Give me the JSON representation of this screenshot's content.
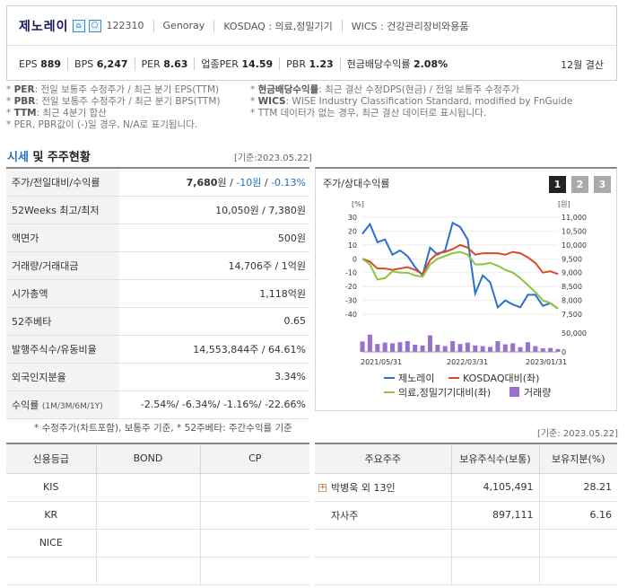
{
  "header": {
    "company_name": "제노레이",
    "badge1": "⌂",
    "badge2": "⎔",
    "code": "122310",
    "english_name": "Genoray",
    "market": "KOSDAQ : 의료,정밀기기",
    "wics": "WICS : 건강관리장비와용품",
    "metrics": [
      {
        "label": "EPS",
        "value": "889"
      },
      {
        "label": "BPS",
        "value": "6,247"
      },
      {
        "label": "PER",
        "value": "8.63"
      },
      {
        "label": "업종PER",
        "value": "14.59"
      },
      {
        "label": "PBR",
        "value": "1.23"
      },
      {
        "label": "현금배당수익률",
        "value": "2.08%"
      }
    ],
    "settlement": "12월 결산"
  },
  "notes": {
    "l1_key": "PER",
    "l1_text": ": 전일 보통주 수정주가 / 최근 분기 EPS(TTM)",
    "r1_key": "현금배당수익률",
    "r1_text": ": 최근 결산 수정DPS(현금) / 전일 보통주 수정주가",
    "l2_key": "PBR",
    "l2_text": ": 전일 보통주 수정주가 / 최근 분기 BPS(TTM)",
    "r2_key": "WICS",
    "r2_text": ": WISE Industry Classification Standard, modified by FnGuide",
    "l3_key": "TTM",
    "l3_text": ": 최근 4분기 합산",
    "r3_text": "* TTM 데이터가 없는 경우, 최근 결산 데이터로 표시됩니다.",
    "l4_text": "* PER, PBR값이 (-)일 경우, N/A로 표기됩니다."
  },
  "section": {
    "title_blue": "시세",
    "title_rest": " 및 주주현황",
    "date": "[기준:2023.05.22]"
  },
  "info_rows": {
    "price": {
      "label": "주가/전일대비/수익률",
      "price": "7,680",
      "unit": "원",
      "sep": " / ",
      "chg": "-10원",
      "sep2": " / ",
      "pct": "-0.13%"
    },
    "weeks52": {
      "label": "52Weeks 최고/최저",
      "value": "10,050원 / 7,380원"
    },
    "face": {
      "label": "액면가",
      "value": "500원"
    },
    "volume": {
      "label": "거래량/거래대금",
      "value": "14,706주 / 1억원"
    },
    "mcap": {
      "label": "시가총액",
      "value": "1,118억원"
    },
    "beta": {
      "label": "52주베타",
      "value": "0.65"
    },
    "shares": {
      "label": "발행주식수/유동비율",
      "value": "14,553,844주 / 64.61%"
    },
    "foreign": {
      "label": "외국인지분율",
      "value": "3.34%"
    },
    "returns": {
      "label": "수익률",
      "label_small": "(1M/3M/6M/1Y)",
      "value": "-2.54%/ -6.34%/ -1.16%/ -22.66%"
    }
  },
  "footnote": "* 수정주가(차트포함), 보통주 기준, * 52주베타: 주간수익률 기준",
  "chart_panel": {
    "title": "주가/상대수익률",
    "tabs": [
      "1",
      "2",
      "3"
    ]
  },
  "chart_data": {
    "type": "line",
    "left_unit": "[%]",
    "right_unit": "[원]",
    "y_left_ticks": [
      "30",
      "20",
      "10",
      "0",
      "-10",
      "-20",
      "-30",
      "-40"
    ],
    "y_right_ticks": [
      "11,000",
      "10,500",
      "10,000",
      "9,500",
      "9,000",
      "8,500",
      "8,000",
      "7,500"
    ],
    "y_left_range": [
      -40,
      30
    ],
    "volume_ticks": [
      "50,000",
      "0"
    ],
    "x_ticks": [
      "2021/05/31",
      "2022/03/31",
      "2023/01/31"
    ],
    "series": [
      {
        "name": "제노레이",
        "color": "#2a6fd1",
        "values": [
          18,
          25,
          12,
          14,
          3,
          6,
          2,
          -6,
          -12,
          8,
          3,
          6,
          26,
          23,
          14,
          -25,
          -12,
          -17,
          -35,
          -30,
          -33,
          -35,
          -26,
          -26,
          -34,
          -32,
          -36
        ]
      },
      {
        "name": "KOSDAQ대비(좌)",
        "color": "#d94a2a",
        "values": [
          0,
          -2,
          -7,
          -7,
          -8,
          -7,
          -6,
          -8,
          -11,
          -1,
          4,
          5,
          7,
          10,
          8,
          3,
          4,
          4,
          4,
          3,
          5,
          4,
          1,
          -3,
          -10,
          -9,
          -11
        ]
      },
      {
        "name": "의료,정밀기기대비(좌)",
        "color": "#8cc43e",
        "values": [
          0,
          -4,
          -15,
          -14,
          -9,
          -10,
          -10,
          -12,
          -13,
          -4,
          0,
          2,
          4,
          5,
          3,
          -4,
          -4,
          -3,
          -5,
          -8,
          -10,
          -14,
          -19,
          -24,
          -30,
          -32,
          -36
        ]
      },
      {
        "name": "거래량",
        "color": "#9b6fd0",
        "values": [
          29000,
          48000,
          22000,
          26000,
          24000,
          27000,
          30000,
          20000,
          18000,
          46000,
          20000,
          16000,
          30000,
          22000,
          26000,
          18000,
          16000,
          14000,
          30000,
          21000,
          24000,
          13000,
          27000,
          16000,
          10000,
          11000,
          8000
        ]
      }
    ]
  },
  "date2": "[기준: 2023.05.22]",
  "credit": {
    "headers": [
      "신용등급",
      "BOND",
      "CP"
    ],
    "rows": [
      [
        "KIS",
        "",
        ""
      ],
      [
        "KR",
        "",
        ""
      ],
      [
        "NICE",
        "",
        ""
      ]
    ]
  },
  "holders": {
    "headers": [
      "주요주주",
      "보유주식수(보통)",
      "보유지분(%)"
    ],
    "rows": [
      {
        "name": "박병욱 외 13인",
        "shares": "4,105,491",
        "pct": "28.21",
        "expand": "+"
      },
      {
        "name": "자사주",
        "shares": "897,111",
        "pct": "6.16"
      },
      {
        "name": "",
        "shares": "",
        "pct": ""
      },
      {
        "name": "",
        "shares": "",
        "pct": ""
      }
    ]
  }
}
